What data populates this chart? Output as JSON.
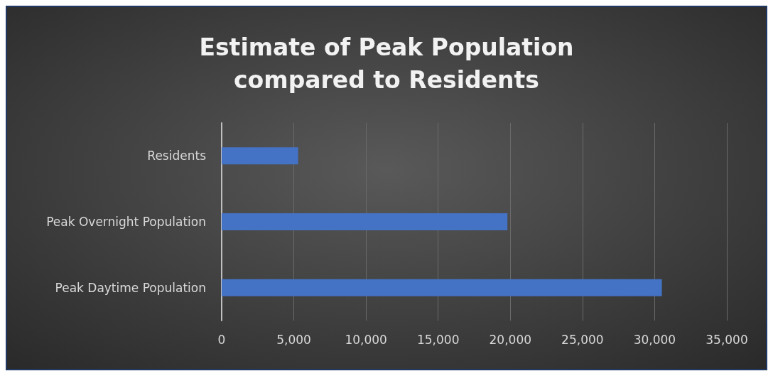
{
  "chart_data": {
    "type": "bar",
    "orientation": "horizontal",
    "title": "Estimate of Peak Population\ncompared to Residents",
    "categories": [
      "Residents",
      "Peak Overnight Population",
      "Peak Daytime Population"
    ],
    "values": [
      5300,
      19800,
      30500
    ],
    "color": "#4472c4",
    "xlim": [
      0,
      35000
    ],
    "xticks": [
      {
        "value": 0,
        "label": "0"
      },
      {
        "value": 5000,
        "label": "5,000"
      },
      {
        "value": 10000,
        "label": "10,000"
      },
      {
        "value": 15000,
        "label": "15,000"
      },
      {
        "value": 20000,
        "label": "20,000"
      },
      {
        "value": 25000,
        "label": "25,000"
      },
      {
        "value": 30000,
        "label": "30,000"
      },
      {
        "value": 35000,
        "label": "35,000"
      }
    ],
    "grid": "x"
  }
}
